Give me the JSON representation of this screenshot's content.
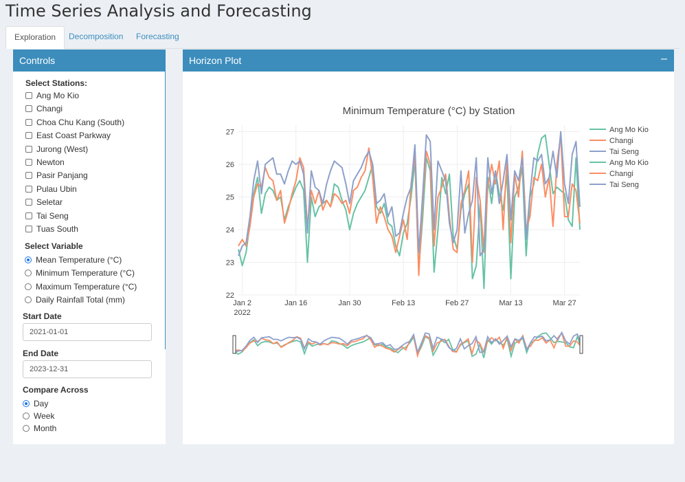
{
  "app": {
    "title": "Time Series Analysis and Forecasting"
  },
  "tabs": [
    {
      "label": "Exploration",
      "active": true
    },
    {
      "label": "Decomposition",
      "active": false
    },
    {
      "label": "Forecasting",
      "active": false
    }
  ],
  "controls": {
    "header": "Controls",
    "stations_label": "Select Stations:",
    "stations": [
      "Ang Mo Kio",
      "Changi",
      "Choa Chu Kang (South)",
      "East Coast Parkway",
      "Jurong (West)",
      "Newton",
      "Pasir Panjang",
      "Pulau Ubin",
      "Seletar",
      "Tai Seng",
      "Tuas South"
    ],
    "variable_label": "Select Variable",
    "variables": [
      "Mean Temperature (°C)",
      "Minimum Temperature (°C)",
      "Maximum Temperature (°C)",
      "Daily Rainfall Total (mm)"
    ],
    "variable_selected": 0,
    "start_label": "Start Date",
    "start_value": "2021-01-01",
    "end_label": "End Date",
    "end_value": "2023-12-31",
    "compare_label": "Compare Across",
    "compare_options": [
      "Day",
      "Week",
      "Month"
    ],
    "compare_selected": 0
  },
  "plot": {
    "header": "Horizon Plot",
    "collapse_icon": "minus-icon"
  },
  "colors": {
    "header_bg": "#3c8dbc",
    "page_bg": "#ecf0f5",
    "series": [
      "#66c2a5",
      "#fc8d62",
      "#8da0cb"
    ]
  },
  "chart_data": {
    "type": "line",
    "title": "Minimum Temperature (°C) by Station",
    "x_start": "2022-01-01",
    "x_end": "2022-03-31",
    "xticks": [
      "Jan 2",
      "Jan 16",
      "Jan 30",
      "Feb 13",
      "Feb 27",
      "Mar 13",
      "Mar 27"
    ],
    "xtick_year": "2022",
    "ylim": [
      22,
      27.2
    ],
    "yticks": [
      "22",
      "23",
      "24",
      "25",
      "26",
      "27"
    ],
    "grid": true,
    "legend_position": "right",
    "range_slider": true,
    "legend": [
      "Ang Mo Kio",
      "Changi",
      "Tai Seng",
      "Ang Mo Kio",
      "Changi",
      "Tai Seng"
    ],
    "series": [
      {
        "name": "Ang Mo Kio",
        "values": [
          23.4,
          22.9,
          23.3,
          24.2,
          25.1,
          25.6,
          24.5,
          25.1,
          25.3,
          25.2,
          24.9,
          25.0,
          24.3,
          24.7,
          25.0,
          25.3,
          25.5,
          25.2,
          23.0,
          25.0,
          24.4,
          24.7,
          24.8,
          24.9,
          24.7,
          25.4,
          25.3,
          24.9,
          24.6,
          24.0,
          24.5,
          24.8,
          25.0,
          25.2,
          25.6,
          26.0,
          24.7,
          24.5,
          24.8,
          24.2,
          24.1,
          23.5,
          23.2,
          23.9,
          24.2,
          25.0,
          26.1,
          22.8,
          24.3,
          26.2,
          25.8,
          22.7,
          24.0,
          25.6,
          25.1,
          25.7,
          23.8,
          23.4,
          24.6,
          25.1,
          25.4,
          22.5,
          22.9,
          24.8,
          22.2,
          25.6,
          24.8,
          25.8,
          25.1,
          24.6,
          25.7,
          22.5,
          25.0,
          25.3,
          25.9,
          23.2,
          25.0,
          25.4,
          26.3,
          26.8,
          26.9,
          26.0,
          25.1,
          25.3,
          25.2,
          25.1,
          24.3,
          24.1,
          26.2,
          24.0
        ]
      },
      {
        "name": "Changi",
        "values": [
          23.5,
          23.7,
          23.5,
          24.1,
          25.0,
          25.4,
          25.3,
          25.9,
          25.6,
          25.5,
          24.9,
          25.2,
          24.2,
          24.6,
          25.1,
          25.5,
          26.2,
          25.9,
          24.1,
          25.2,
          24.8,
          25.2,
          24.6,
          24.9,
          24.7,
          25.1,
          25.0,
          24.8,
          24.9,
          24.5,
          25.2,
          25.3,
          25.6,
          25.8,
          26.5,
          25.6,
          24.2,
          24.7,
          24.4,
          24.0,
          23.8,
          23.3,
          23.8,
          24.3,
          23.7,
          25.4,
          26.3,
          22.6,
          24.8,
          26.4,
          26.0,
          23.5,
          25.0,
          25.3,
          25.7,
          24.4,
          23.4,
          23.3,
          24.8,
          25.2,
          25.8,
          23.0,
          25.6,
          24.9,
          23.3,
          25.3,
          26.0,
          25.4,
          26.1,
          24.0,
          26.2,
          23.6,
          25.7,
          25.0,
          26.4,
          24.0,
          24.4,
          25.6,
          25.5,
          26.0,
          25.0,
          25.6,
          24.1,
          26.0,
          26.9,
          24.4,
          24.4,
          25.4,
          25.2,
          24.2
        ]
      },
      {
        "name": "Tai Seng",
        "values": [
          23.2,
          23.5,
          23.6,
          24.4,
          25.5,
          26.1,
          25.1,
          26.0,
          26.1,
          26.2,
          25.7,
          25.7,
          25.4,
          25.8,
          26.1,
          26.0,
          26.1,
          25.7,
          23.9,
          25.8,
          25.3,
          25.2,
          24.8,
          25.4,
          25.8,
          26.1,
          26.0,
          25.9,
          25.4,
          24.8,
          25.5,
          25.7,
          25.9,
          26.2,
          26.4,
          26.0,
          24.8,
          24.9,
          25.1,
          24.4,
          24.7,
          23.8,
          23.9,
          24.5,
          25.0,
          25.3,
          26.6,
          23.3,
          25.0,
          26.9,
          26.7,
          24.0,
          26.1,
          25.8,
          25.5,
          24.2,
          23.6,
          24.0,
          25.8,
          23.9,
          24.5,
          24.9,
          26.2,
          23.2,
          23.4,
          26.2,
          25.1,
          25.8,
          24.8,
          25.5,
          26.3,
          24.3,
          25.8,
          25.5,
          26.2,
          23.7,
          25.1,
          26.2,
          26.1,
          26.3,
          25.4,
          25.6,
          26.4,
          25.6,
          27.0,
          25.4,
          24.8,
          26.3,
          26.7,
          24.7
        ]
      }
    ]
  }
}
